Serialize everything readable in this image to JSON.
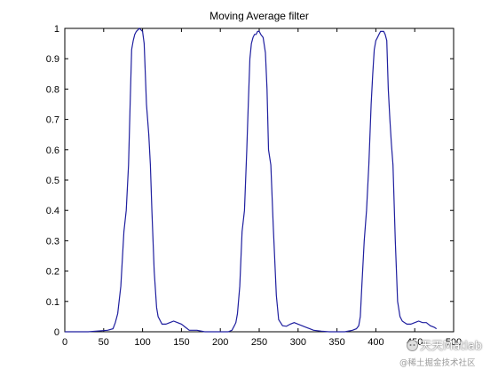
{
  "chart_data": {
    "type": "line",
    "title": "Moving Average filter",
    "xlabel": "",
    "ylabel": "",
    "xlim": [
      0,
      500
    ],
    "ylim": [
      0,
      1
    ],
    "xticks": [
      "0",
      "50",
      "100",
      "150",
      "200",
      "250",
      "300",
      "350",
      "400",
      "450",
      "500"
    ],
    "yticks": [
      "0",
      "0.1",
      "0.2",
      "0.3",
      "0.4",
      "0.5",
      "0.6",
      "0.7",
      "0.8",
      "0.9",
      "1"
    ],
    "grid": false,
    "line_color": "#1f1f9f",
    "series": [
      {
        "x": [
          0,
          30,
          55,
          62,
          65,
          68,
          72,
          76,
          79,
          82,
          84,
          86,
          88,
          90,
          92,
          96,
          100,
          102,
          105,
          108,
          110,
          112,
          115,
          118,
          120,
          125,
          130,
          135,
          140,
          145,
          150,
          155,
          160,
          170,
          180,
          190,
          200,
          210,
          215,
          218,
          220,
          222,
          225,
          228,
          231,
          234,
          236,
          238,
          240,
          242,
          244,
          246,
          248,
          250,
          252,
          255,
          258,
          260,
          262,
          265,
          268,
          272,
          275,
          280,
          285,
          290,
          295,
          300,
          305,
          310,
          315,
          320,
          330,
          340,
          350,
          360,
          370,
          375,
          378,
          380,
          382,
          385,
          388,
          391,
          394,
          396,
          398,
          400,
          402,
          404,
          406,
          408,
          410,
          412,
          414,
          416,
          418,
          420,
          422,
          425,
          428,
          431,
          434,
          437,
          440,
          445,
          450,
          455,
          460,
          465,
          470,
          475,
          478
        ],
        "y": [
          0,
          0,
          0.005,
          0.01,
          0.03,
          0.06,
          0.15,
          0.33,
          0.4,
          0.55,
          0.75,
          0.93,
          0.96,
          0.98,
          0.99,
          1.0,
          0.99,
          0.95,
          0.75,
          0.65,
          0.55,
          0.4,
          0.2,
          0.08,
          0.05,
          0.025,
          0.025,
          0.03,
          0.035,
          0.03,
          0.025,
          0.015,
          0.005,
          0.005,
          0.0,
          0.0,
          0.0,
          0.0,
          0.005,
          0.02,
          0.03,
          0.06,
          0.15,
          0.33,
          0.4,
          0.6,
          0.75,
          0.9,
          0.95,
          0.97,
          0.98,
          0.98,
          0.99,
          0.99,
          0.98,
          0.97,
          0.92,
          0.8,
          0.6,
          0.55,
          0.35,
          0.12,
          0.04,
          0.02,
          0.018,
          0.025,
          0.03,
          0.025,
          0.02,
          0.015,
          0.01,
          0.005,
          0.002,
          0.0,
          0.0,
          0.0,
          0.005,
          0.01,
          0.02,
          0.05,
          0.15,
          0.3,
          0.4,
          0.55,
          0.75,
          0.85,
          0.93,
          0.96,
          0.97,
          0.98,
          0.99,
          0.99,
          0.99,
          0.98,
          0.96,
          0.8,
          0.7,
          0.62,
          0.55,
          0.3,
          0.1,
          0.05,
          0.035,
          0.03,
          0.025,
          0.025,
          0.03,
          0.035,
          0.03,
          0.03,
          0.02,
          0.015,
          0.01
        ]
      }
    ]
  },
  "watermark": {
    "main": "天天Matlab",
    "sub": "@稀土掘金技术社区"
  }
}
